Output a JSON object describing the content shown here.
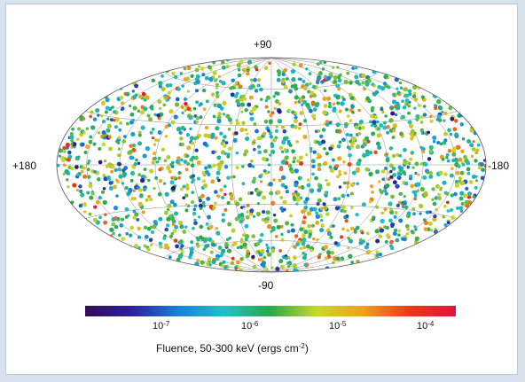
{
  "chart_data": {
    "type": "scatter",
    "projection": "aitoff-hammer equal-area sky map",
    "labels": {
      "top": "+90",
      "bottom": "-90",
      "left": "+180",
      "right": "-180"
    },
    "colorbar": {
      "label": "Fluence, 50-300 keV (ergs cm",
      "label_sup": "-2",
      "label_end": ")",
      "ticks": [
        {
          "base": "10",
          "exp": "-7"
        },
        {
          "base": "10",
          "exp": "-6"
        },
        {
          "base": "10",
          "exp": "-5"
        },
        {
          "base": "10",
          "exp": "-4"
        }
      ],
      "log_range": [
        -7.6,
        -3.7
      ],
      "colors": [
        "#3a0a5a",
        "#2a1f9a",
        "#1a7fd8",
        "#22c0c8",
        "#2aa84a",
        "#c8d82a",
        "#f0a020",
        "#e83a1a",
        "#e0143c"
      ]
    },
    "points_note_count": 1800,
    "grid": true
  }
}
